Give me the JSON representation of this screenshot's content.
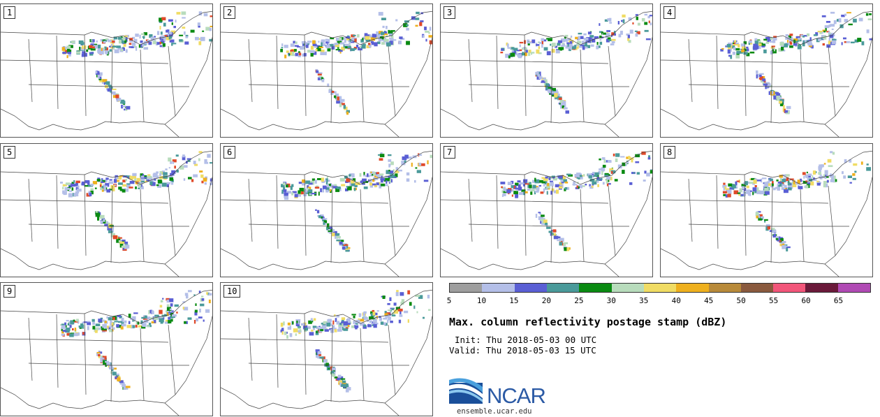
{
  "panels": [
    {
      "label": "1"
    },
    {
      "label": "2"
    },
    {
      "label": "3"
    },
    {
      "label": "4"
    },
    {
      "label": "5"
    },
    {
      "label": "6"
    },
    {
      "label": "7"
    },
    {
      "label": "8"
    },
    {
      "label": "9"
    },
    {
      "label": "10"
    }
  ],
  "colorbar": {
    "colors": [
      "#9e9e9e",
      "#b4bfe8",
      "#5a5fd4",
      "#4a9a9a",
      "#0a8a12",
      "#b8dcbc",
      "#f0dc64",
      "#eeb01e",
      "#b88a3a",
      "#8a5a3e",
      "#f2567a",
      "#6a1a3a",
      "#b04ab4"
    ],
    "ticks": [
      "5",
      "10",
      "15",
      "20",
      "25",
      "30",
      "35",
      "40",
      "45",
      "50",
      "55",
      "60",
      "65"
    ]
  },
  "title": "Max. column reflectivity postage stamp (dBZ)",
  "init": "Init: Thu 2018-05-03 00 UTC",
  "valid": "Valid: Thu 2018-05-03 15 UTC",
  "logo": {
    "text": "NCAR",
    "site": "ensemble.ucar.edu"
  }
}
